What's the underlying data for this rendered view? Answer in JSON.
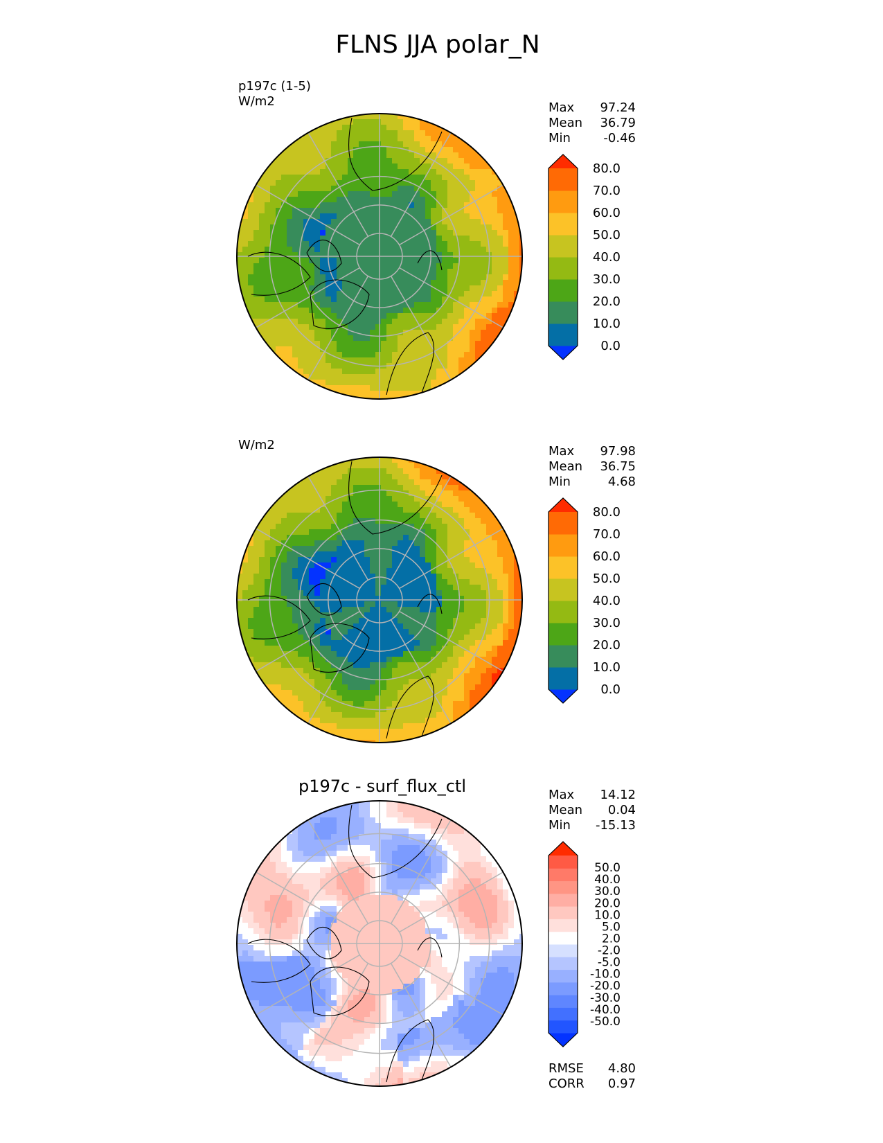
{
  "figure": {
    "title": "FLNS JJA polar_N"
  },
  "colors": {
    "abs": [
      "#0433ff",
      "#046fa6",
      "#378c5b",
      "#4da617",
      "#94ba13",
      "#c7c420",
      "#fcc228",
      "#ff9b10",
      "#ff6a05",
      "#ff2c00"
    ],
    "diff": [
      "#0433ff",
      "#2255ff",
      "#4270ff",
      "#5f86ff",
      "#7b9bff",
      "#98b0ff",
      "#b5c5ff",
      "#d6e0ff",
      "#ffffff",
      "#ffe0dc",
      "#ffc8c0",
      "#ffaea4",
      "#ff9584",
      "#ff7a68",
      "#ff5a44",
      "#ff2c00"
    ],
    "land_outline": "#000000",
    "grid": "#b4b4b4"
  },
  "chart_data": [
    {
      "type": "heatmap",
      "projection": "north polar stereographic",
      "title": "",
      "left_labels": [
        "p197c (1-5)",
        "W/m2"
      ],
      "stats": [
        {
          "label": "Max",
          "value": "97.24"
        },
        {
          "label": "Mean",
          "value": "36.79"
        },
        {
          "label": "Min",
          "value": "-0.46"
        }
      ],
      "colorbar": {
        "levels": [
          "0.0",
          "10.0",
          "20.0",
          "30.0",
          "40.0",
          "50.0",
          "60.0",
          "70.0",
          "80.0"
        ],
        "extend": "both"
      },
      "field": {
        "pole_value": 15,
        "pole_extent_deg": 20,
        "rim_value": 52,
        "asym": 9,
        "ring_blue": true
      }
    },
    {
      "type": "heatmap",
      "projection": "north polar stereographic",
      "title": "",
      "left_labels": [
        "W/m2"
      ],
      "stats": [
        {
          "label": "Max",
          "value": "97.98"
        },
        {
          "label": "Mean",
          "value": "36.75"
        },
        {
          "label": "Min",
          "value": "4.68"
        }
      ],
      "colorbar": {
        "levels": [
          "0.0",
          "10.0",
          "20.0",
          "30.0",
          "40.0",
          "50.0",
          "60.0",
          "70.0",
          "80.0"
        ],
        "extend": "both"
      },
      "field": {
        "pole_value": 8,
        "pole_extent_deg": 18,
        "rim_value": 55,
        "asym": 11,
        "ring_blue": false
      }
    },
    {
      "type": "heatmap",
      "projection": "north polar stereographic",
      "title": "p197c - surf_flux_ctl",
      "left_labels": [],
      "stats": [
        {
          "label": "Max",
          "value": "14.12"
        },
        {
          "label": "Mean",
          "value": "0.04"
        },
        {
          "label": "Min",
          "value": "-15.13"
        }
      ],
      "colorbar": {
        "levels": [
          "-50.0",
          "-40.0",
          "-30.0",
          "-20.0",
          "-10.0",
          "-5.0",
          "-2.0",
          "2.0",
          "5.0",
          "10.0",
          "20.0",
          "30.0",
          "40.0",
          "50.0"
        ],
        "extend": "both"
      },
      "metrics": [
        {
          "label": "RMSE",
          "value": "4.80"
        },
        {
          "label": "CORR",
          "value": "0.97"
        }
      ],
      "field": {
        "diff": true
      }
    }
  ]
}
